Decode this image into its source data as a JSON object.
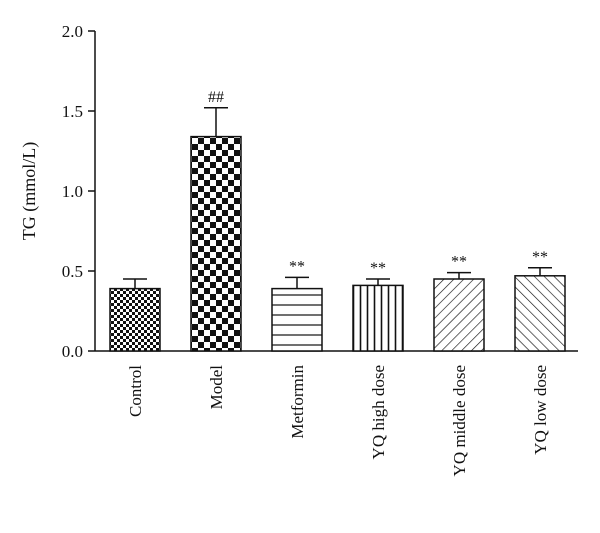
{
  "chart_data": {
    "type": "bar",
    "ylabel": "TG (mmol/L)",
    "ylim": [
      0,
      2.0
    ],
    "yticks": [
      "0.0",
      "0.5",
      "1.0",
      "1.5",
      "2.0"
    ],
    "categories": [
      "Control",
      "Model",
      "Metformin",
      "YQ high dose",
      "YQ middle dose",
      "YQ low dose"
    ],
    "values": [
      0.39,
      1.34,
      0.39,
      0.41,
      0.45,
      0.47
    ],
    "errors": [
      0.06,
      0.18,
      0.07,
      0.04,
      0.04,
      0.05
    ],
    "annotations": [
      "",
      "##",
      "**",
      "**",
      "**",
      "**"
    ],
    "patterns": [
      "checker-small",
      "checker-large",
      "horizontal-lines",
      "vertical-lines",
      "diagonal-up",
      "diagonal-down"
    ],
    "colors": {
      "ink": "#111111",
      "fill": "#ffffff"
    }
  }
}
